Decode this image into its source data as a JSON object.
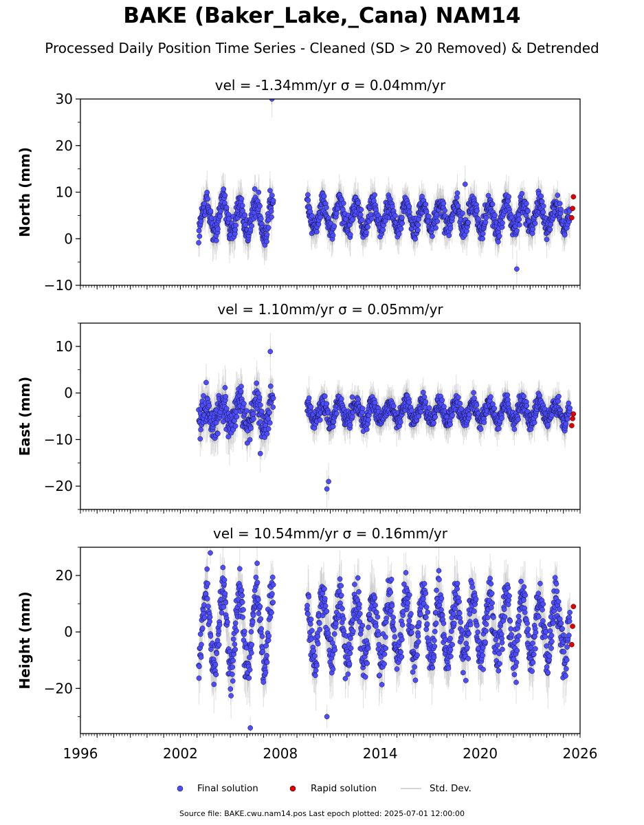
{
  "title": "BAKE (Baker_Lake,_Cana) NAM14",
  "subtitle": "Processed Daily Position Time Series - Cleaned (SD > 20 Removed) & Detrended",
  "footer": "Source file: BAKE.cwu.nam14.pos  Last epoch plotted: 2025-07-01 12:00:00",
  "colors": {
    "final": "#4d4dff",
    "rapid": "#e00000",
    "stddev": "#c8c8c8"
  },
  "chart_data": [
    {
      "type": "scatter",
      "title": "vel = -1.34mm/yr   σ = 0.04mm/yr",
      "ylabel": "North (mm)",
      "xlim": [
        1996,
        2026
      ],
      "ylim": [
        -10,
        30
      ],
      "yticks": [
        -10,
        0,
        10,
        20,
        30
      ],
      "grid": false,
      "segments": [
        {
          "x0": 2003.1,
          "x1": 2007.6,
          "mean": 4.5,
          "amp": 3.5,
          "noise": 1.5
        },
        {
          "x0": 2009.6,
          "x1": 2025.4,
          "mean": 4.8,
          "amp": 2.8,
          "noise": 1.2
        }
      ],
      "rapid": {
        "x": [
          2025.5,
          2025.55,
          2025.6
        ],
        "y": [
          4.5,
          6.5,
          9.0
        ]
      },
      "outliers": {
        "x": [
          2007.5,
          2019.1,
          2022.2
        ],
        "y": [
          30.0,
          11.7,
          -6.5
        ]
      }
    },
    {
      "type": "scatter",
      "title": "vel = 1.10mm/yr   σ = 0.05mm/yr",
      "ylabel": "East (mm)",
      "xlim": [
        1996,
        2026
      ],
      "ylim": [
        -25,
        15
      ],
      "yticks": [
        -20,
        -10,
        0,
        10
      ],
      "grid": false,
      "segments": [
        {
          "x0": 2003.1,
          "x1": 2007.6,
          "mean": -4.5,
          "amp": 2.5,
          "noise": 1.8
        },
        {
          "x0": 2009.6,
          "x1": 2025.4,
          "mean": -4.0,
          "amp": 2.0,
          "noise": 1.0
        }
      ],
      "rapid": {
        "x": [
          2025.5,
          2025.55,
          2025.6
        ],
        "y": [
          -7.0,
          -5.5,
          -4.5
        ]
      },
      "outliers": {
        "x": [
          2007.4,
          2010.8,
          2010.9,
          2006.8
        ],
        "y": [
          8.9,
          -20.6,
          -19.0,
          -13.0
        ]
      }
    },
    {
      "type": "scatter",
      "title": "vel = 10.54mm/yr   σ = 0.16mm/yr",
      "ylabel": "Height (mm)",
      "xlim": [
        1996,
        2026
      ],
      "ylim": [
        -36,
        30
      ],
      "yticks": [
        -20,
        0,
        20
      ],
      "xticks": [
        1996,
        2002,
        2008,
        2014,
        2020,
        2026
      ],
      "grid": false,
      "segments": [
        {
          "x0": 2003.1,
          "x1": 2007.6,
          "mean": 1.0,
          "amp": 14.0,
          "noise": 4.0
        },
        {
          "x0": 2009.6,
          "x1": 2025.4,
          "mean": 1.5,
          "amp": 11.0,
          "noise": 4.0
        }
      ],
      "rapid": {
        "x": [
          2025.5,
          2025.55,
          2025.6
        ],
        "y": [
          -4.5,
          2.0,
          9.0
        ]
      },
      "outliers": {
        "x": [
          2006.2,
          2010.8,
          2003.8
        ],
        "y": [
          -34.0,
          -30.0,
          28.0
        ]
      }
    }
  ],
  "legend": {
    "final_label": "Final solution",
    "rapid_label": "Rapid solution",
    "stddev_label": "Std. Dev."
  }
}
